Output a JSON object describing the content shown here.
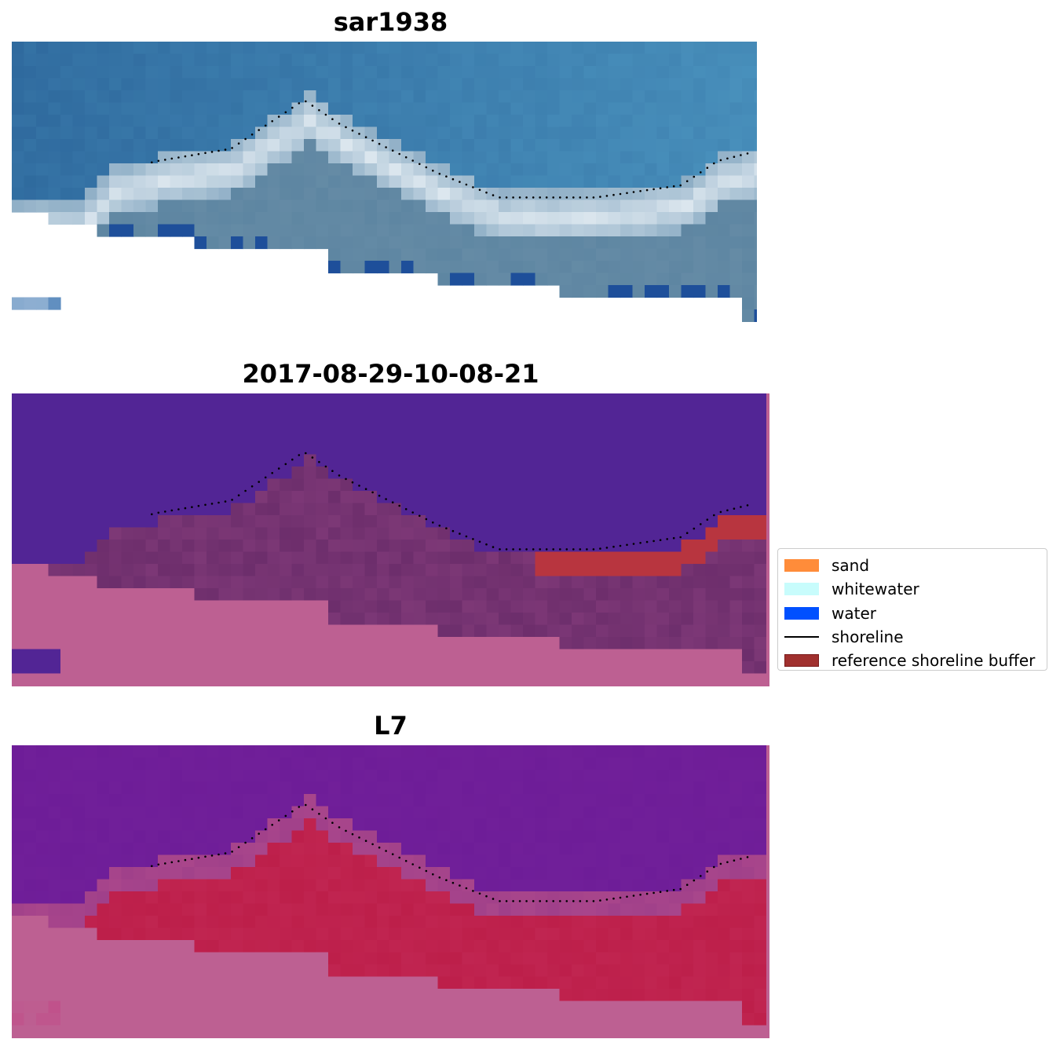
{
  "panels": [
    {
      "title": "sar1938",
      "view": "true-color"
    },
    {
      "title": "2017-08-29-10-08-21",
      "view": "classified"
    },
    {
      "title": "L7",
      "view": "index"
    }
  ],
  "legend": [
    {
      "label": "sand",
      "color": "#ff8c3a",
      "type": "patch"
    },
    {
      "label": "whitewater",
      "color": "#c8fcfc",
      "type": "patch"
    },
    {
      "label": "water",
      "color": "#0050ff",
      "type": "patch"
    },
    {
      "label": "shoreline",
      "color": "#000000",
      "type": "line"
    },
    {
      "label": "reference shoreline buffer",
      "color": "#a0302e",
      "type": "patch",
      "edge": "#7a1a1a"
    }
  ],
  "colors": {
    "ocean_true": "#2f6a9e",
    "land_true": "#5e86a2",
    "water_class": "#522595",
    "land_class": "#6d2e6c",
    "buffer": "#b8353f",
    "nodata": "#bd6092",
    "ocean_index": "#6e1d98",
    "land_index": "#bd1f4a"
  }
}
